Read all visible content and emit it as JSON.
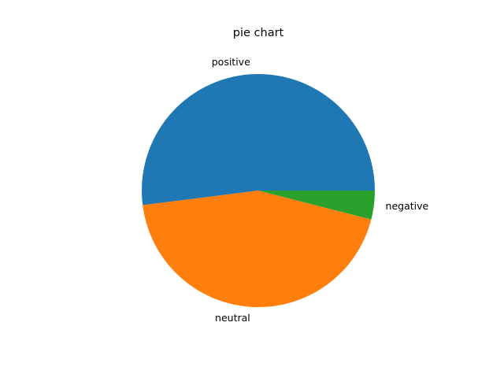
{
  "chart_data": {
    "type": "pie",
    "title": "pie chart",
    "categories": [
      "positive",
      "neutral",
      "negative"
    ],
    "values": [
      52,
      44,
      4
    ],
    "colors": [
      "#1f77b4",
      "#ff7f0e",
      "#2ca02c"
    ],
    "start_angle_deg": 0,
    "direction": "counterclockwise",
    "legend": "none"
  }
}
